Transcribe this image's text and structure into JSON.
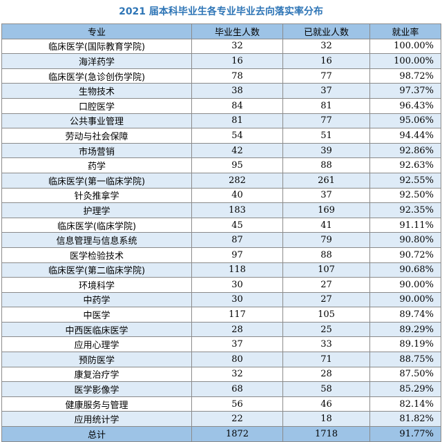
{
  "title": "2021 届本科毕业生各专业毕业去向落实率分布",
  "table": {
    "headers": [
      "专业",
      "毕业生人数",
      "已就业人数",
      "就业率"
    ],
    "rows": [
      [
        "临床医学(国际教育学院)",
        "32",
        "32",
        "100.00%"
      ],
      [
        "海洋药学",
        "16",
        "16",
        "100.00%"
      ],
      [
        "临床医学(急诊创伤学院)",
        "78",
        "77",
        "98.72%"
      ],
      [
        "生物技术",
        "38",
        "37",
        "97.37%"
      ],
      [
        "口腔医学",
        "84",
        "81",
        "96.43%"
      ],
      [
        "公共事业管理",
        "81",
        "77",
        "95.06%"
      ],
      [
        "劳动与社会保障",
        "54",
        "51",
        "94.44%"
      ],
      [
        "市场营销",
        "42",
        "39",
        "92.86%"
      ],
      [
        "药学",
        "95",
        "88",
        "92.63%"
      ],
      [
        "临床医学(第一临床学院)",
        "282",
        "261",
        "92.55%"
      ],
      [
        "针灸推拿学",
        "40",
        "37",
        "92.50%"
      ],
      [
        "护理学",
        "183",
        "169",
        "92.35%"
      ],
      [
        "临床医学(临床学院)",
        "45",
        "41",
        "91.11%"
      ],
      [
        "信息管理与信息系统",
        "87",
        "79",
        "90.80%"
      ],
      [
        "医学检验技术",
        "97",
        "88",
        "90.72%"
      ],
      [
        "临床医学(第二临床学院)",
        "118",
        "107",
        "90.68%"
      ],
      [
        "环境科学",
        "30",
        "27",
        "90.00%"
      ],
      [
        "中药学",
        "30",
        "27",
        "90.00%"
      ],
      [
        "中医学",
        "117",
        "105",
        "89.74%"
      ],
      [
        "中西医临床医学",
        "28",
        "25",
        "89.29%"
      ],
      [
        "应用心理学",
        "37",
        "33",
        "89.19%"
      ],
      [
        "预防医学",
        "80",
        "71",
        "88.75%"
      ],
      [
        "康复治疗学",
        "32",
        "28",
        "87.50%"
      ],
      [
        "医学影像学",
        "68",
        "58",
        "85.29%"
      ],
      [
        "健康服务与管理",
        "56",
        "46",
        "82.14%"
      ],
      [
        "应用统计学",
        "22",
        "18",
        "81.82%"
      ]
    ],
    "total": [
      "总计",
      "1872",
      "1718",
      "91.77%"
    ]
  },
  "colors": {
    "title": "#2e75b6",
    "header_bg": "#9dc3e6",
    "stripe_bg": "#deebf7"
  }
}
